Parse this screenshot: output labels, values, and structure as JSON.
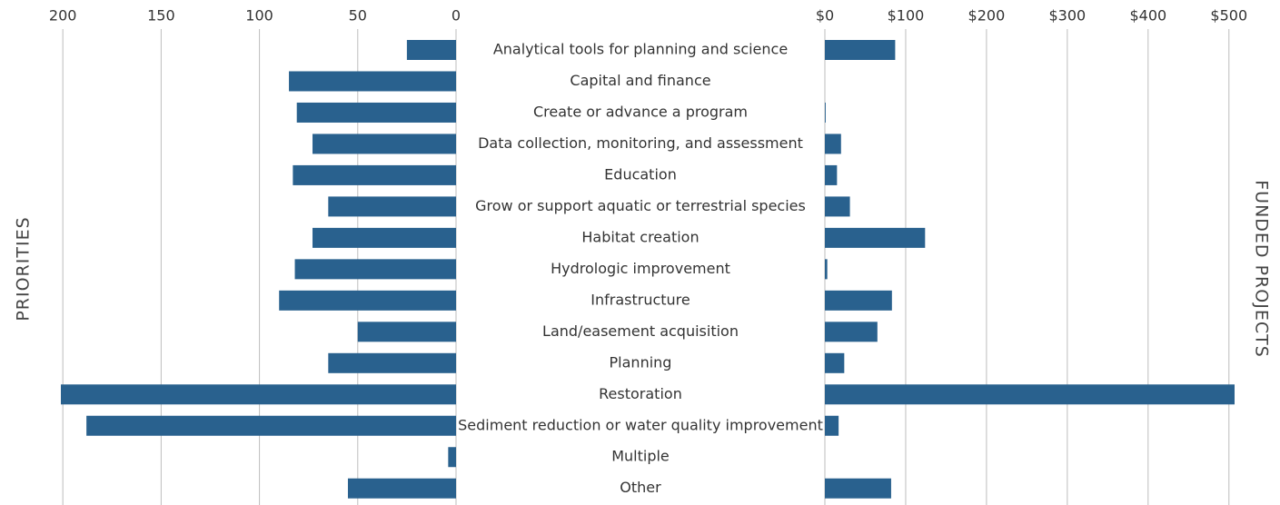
{
  "chart_data": [
    {
      "type": "bar",
      "orientation": "horizontal",
      "x_reversed": true,
      "axis_title": "PRIORITIES",
      "categories": [
        "Analytical tools for planning and science",
        "Capital and finance",
        "Create or advance a program",
        "Data collection, monitoring, and assessment",
        "Education",
        "Grow or support aquatic or terrestrial species",
        "Habitat creation",
        "Hydrologic improvement",
        "Infrastructure",
        "Land/easement acquisition",
        "Planning",
        "Restoration",
        "Sediment reduction or water quality improvement",
        "Multiple",
        "Other"
      ],
      "values": [
        25,
        85,
        81,
        73,
        83,
        65,
        73,
        82,
        90,
        50,
        65,
        201,
        188,
        4,
        55
      ],
      "color": "#29618e",
      "xlim": [
        0,
        201
      ],
      "xticks": [
        200,
        150,
        100,
        50,
        0
      ],
      "grid": true
    },
    {
      "type": "bar",
      "orientation": "horizontal",
      "x_reversed": false,
      "axis_title": "FUNDED PROJECTS",
      "values": [
        87,
        0,
        1,
        20,
        15,
        31,
        124,
        3,
        83,
        65,
        24,
        507,
        17,
        0,
        82
      ],
      "color": "#29618e",
      "xlim": [
        0,
        507
      ],
      "xticks": [
        {
          "value": 0,
          "label": "$0"
        },
        {
          "value": 100,
          "label": "$100"
        },
        {
          "value": 200,
          "label": "$200"
        },
        {
          "value": 300,
          "label": "$300"
        },
        {
          "value": 400,
          "label": "$400"
        },
        {
          "value": 500,
          "label": "$500"
        }
      ],
      "grid": true
    }
  ]
}
